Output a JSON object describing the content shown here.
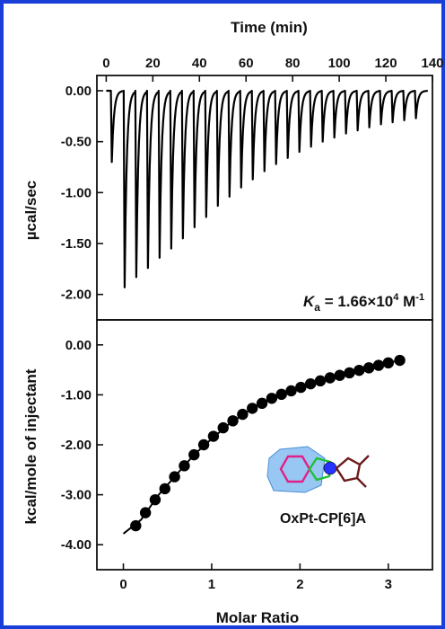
{
  "colors": {
    "frame": "#1a3fd8",
    "axis": "#111111",
    "trace": "#000000",
    "points": "#000000"
  },
  "chart_data": [
    {
      "type": "line",
      "panel": "top",
      "xlabel": "Time (min)",
      "ylabel": "µcal/sec",
      "xlim": [
        -4,
        140
      ],
      "ylim": [
        -2.25,
        0.15
      ],
      "x_ticks": [
        0,
        20,
        40,
        60,
        80,
        100,
        120,
        140
      ],
      "x_tick_labels": [
        "0",
        "20",
        "40",
        "60",
        "80",
        "100",
        "120",
        "140"
      ],
      "y_ticks": [
        0,
        -0.5,
        -1,
        -1.5,
        -2
      ],
      "y_tick_labels": [
        "0.00",
        "-0.50",
        "-1.00",
        "-1.50",
        "-2.00"
      ],
      "baseline": 0.0,
      "annotation": {
        "symbol": "K",
        "subscript": "a",
        "text": " = 1.66×10",
        "exponent": "4",
        "unit": " M",
        "unit_exponent": "-1"
      },
      "series": [
        {
          "injection_times": [
            2,
            7.5,
            12.5,
            17.5,
            22.5,
            27.5,
            32.5,
            37.5,
            42.5,
            47.5,
            52.5,
            57.5,
            62.5,
            67.5,
            72.5,
            77.5,
            82.5,
            87.5,
            92.5,
            97.5,
            102.5,
            107.5,
            112.5,
            117.5,
            122.5,
            127.5,
            132.5
          ],
          "peak_heights": [
            -0.7,
            -1.93,
            -1.83,
            -1.74,
            -1.64,
            -1.55,
            -1.45,
            -1.34,
            -1.24,
            -1.13,
            -1.04,
            -0.95,
            -0.87,
            -0.79,
            -0.72,
            -0.66,
            -0.6,
            -0.55,
            -0.5,
            -0.46,
            -0.42,
            -0.39,
            -0.36,
            -0.33,
            -0.31,
            -0.29,
            -0.27
          ]
        }
      ]
    },
    {
      "type": "scatter",
      "panel": "bottom",
      "xlabel": "Molar Ratio",
      "ylabel": "kcal/mole of injectant",
      "xlim": [
        -0.3,
        3.5
      ],
      "ylim": [
        -4.5,
        0.5
      ],
      "x_ticks": [
        0,
        1,
        2,
        3
      ],
      "x_tick_labels": [
        "0",
        "1",
        "2",
        "3"
      ],
      "y_ticks": [
        0,
        -1,
        -2,
        -3,
        -4
      ],
      "y_tick_labels": [
        "0.00",
        "-1.00",
        "-2.00",
        "-3.00",
        "-4.00"
      ],
      "inset_label": "OxPt-CP[6]A",
      "series": [
        {
          "x": [
            0.14,
            0.25,
            0.36,
            0.47,
            0.58,
            0.69,
            0.8,
            0.91,
            1.02,
            1.13,
            1.24,
            1.35,
            1.46,
            1.57,
            1.68,
            1.79,
            1.9,
            2.01,
            2.12,
            2.23,
            2.34,
            2.45,
            2.56,
            2.67,
            2.78,
            2.89,
            3.0,
            3.13
          ],
          "y": [
            -3.62,
            -3.36,
            -3.1,
            -2.88,
            -2.64,
            -2.42,
            -2.2,
            -2.0,
            -1.83,
            -1.66,
            -1.52,
            -1.39,
            -1.27,
            -1.17,
            -1.07,
            -0.99,
            -0.92,
            -0.85,
            -0.78,
            -0.72,
            -0.66,
            -0.61,
            -0.56,
            -0.51,
            -0.46,
            -0.41,
            -0.36,
            -0.31
          ]
        }
      ],
      "fit": {
        "x": [
          0.0,
          0.2,
          0.4,
          0.6,
          0.8,
          1.0,
          1.2,
          1.4,
          1.6,
          1.8,
          2.0,
          2.2,
          2.4,
          2.6,
          2.8,
          3.0,
          3.15
        ],
        "y": [
          -3.78,
          -3.5,
          -3.0,
          -2.6,
          -2.2,
          -1.88,
          -1.58,
          -1.34,
          -1.14,
          -0.98,
          -0.85,
          -0.74,
          -0.63,
          -0.54,
          -0.45,
          -0.36,
          -0.3
        ]
      }
    }
  ]
}
